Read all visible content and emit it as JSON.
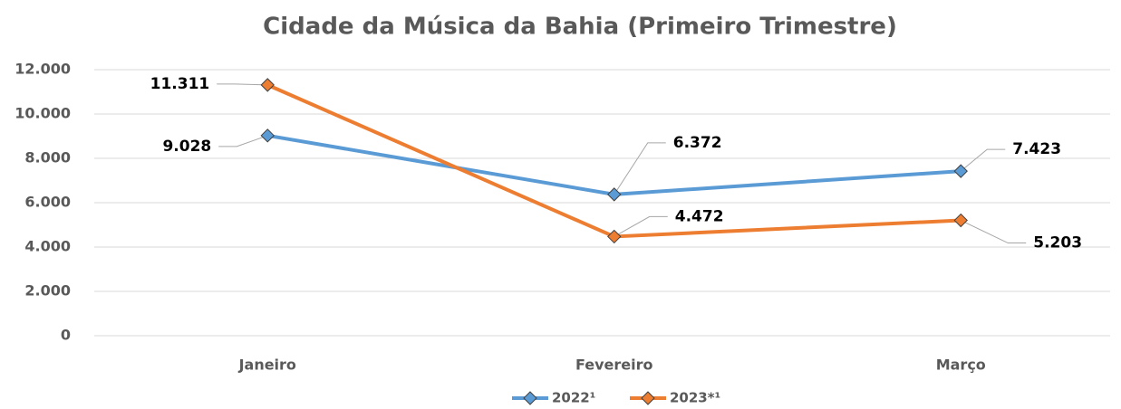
{
  "chart_data": {
    "type": "line",
    "title": "Cidade da Música da Bahia (Primeiro Trimestre)",
    "categories": [
      "Janeiro",
      "Fevereiro",
      "Março"
    ],
    "series": [
      {
        "name": "2022¹",
        "color": "#5b9bd5",
        "values": [
          9028,
          6372,
          7423
        ],
        "value_labels": [
          "9.028",
          "6.372",
          "7.423"
        ]
      },
      {
        "name": "2023*¹",
        "color": "#ed7d31",
        "values": [
          11311,
          4472,
          5203
        ],
        "value_labels": [
          "11.311",
          "4.472",
          "5.203"
        ]
      }
    ],
    "ylim": [
      0,
      12000
    ],
    "yticks": [
      0,
      {
        "value": 2000,
        "label": "2.000"
      },
      {
        "value": 4000,
        "label": "4.000"
      },
      {
        "value": 6000,
        "label": "6.000"
      },
      {
        "value": 8000,
        "label": "8.000"
      },
      {
        "value": 10000,
        "label": "10.000"
      },
      {
        "value": 12000,
        "label": "12.000"
      }
    ],
    "grid": true,
    "legend": "bottom"
  }
}
